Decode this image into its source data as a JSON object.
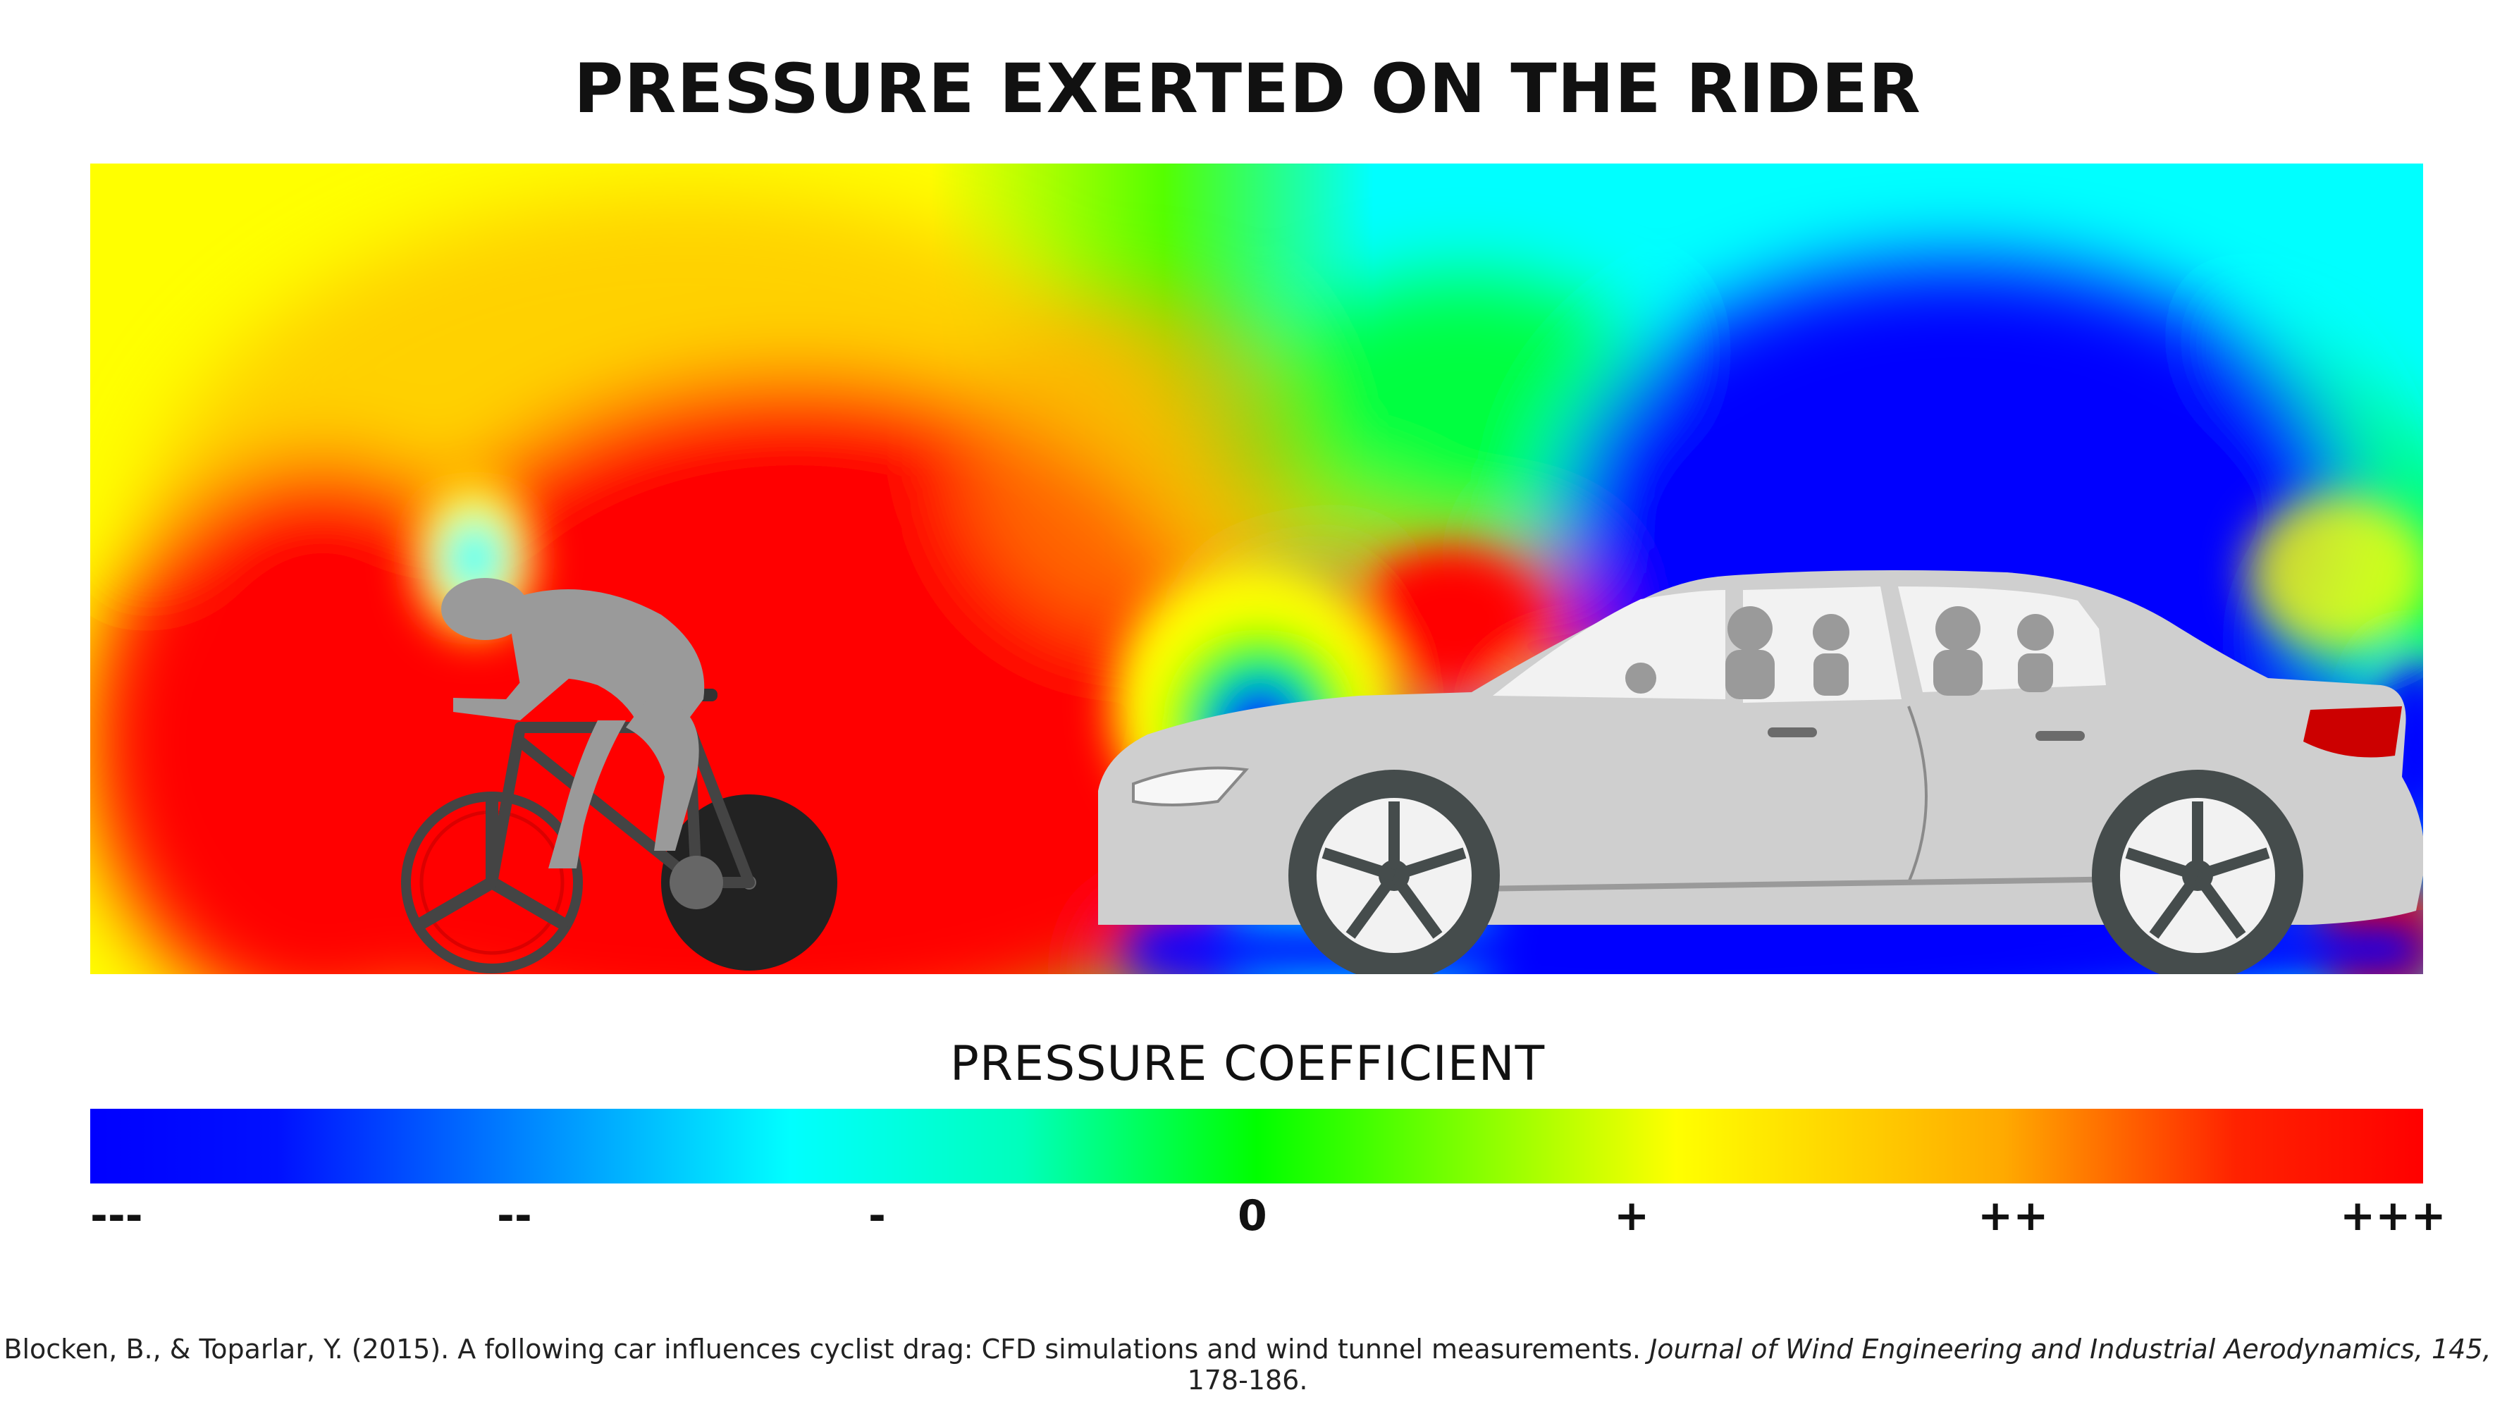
{
  "title": "PRESSURE EXERTED ON THE RIDER",
  "legend": {
    "title": "PRESSURE COEFFICIENT",
    "ticks": [
      "---",
      "--",
      "-",
      "0",
      "+",
      "++",
      "+++"
    ],
    "gradient_colors": [
      "#0000ff",
      "#00e5ff",
      "#00ff00",
      "#ffff00",
      "#ff0000"
    ]
  },
  "colors": {
    "high_pressure": "#ff0000",
    "low_pressure": "#0000ff",
    "neutral": "#00ff00",
    "rider_silhouette": "#9a9a9a",
    "bike_frame": "#444444",
    "disc_wheel": "#222222",
    "car_body": "#cfcfcf",
    "car_tire": "#454c4c",
    "tail_light": "#cc0000"
  },
  "icons": [
    "cyclist-icon",
    "car-icon"
  ],
  "citation": {
    "authors": "Blocken, B., & Toparlar, Y. (2015). A following car influences cyclist drag: CFD simulations and wind tunnel measurements.",
    "journal": "Journal of Wind Engineering and Industrial Aerodynamics, 145,",
    "pages": "178-186."
  }
}
